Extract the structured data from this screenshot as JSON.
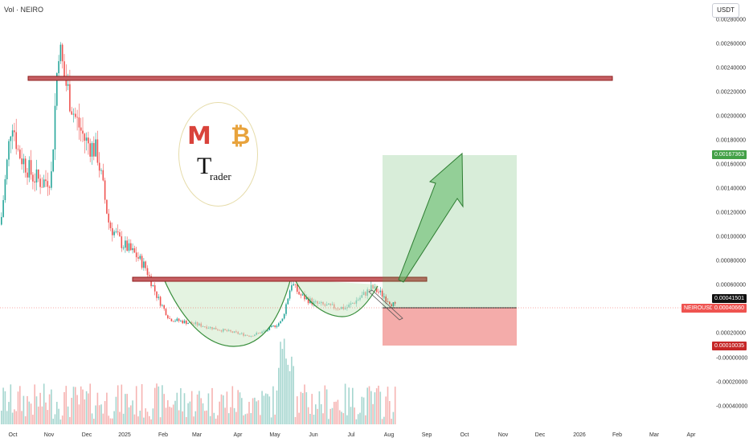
{
  "header": {
    "volume_label": "Vol · NEIRO",
    "currency_label": "USDT"
  },
  "price_axis": {
    "ticks": [
      "0.00280000",
      "0.00260000",
      "0.00240000",
      "0.00220000",
      "0.00200000",
      "0.00180000",
      "0.00160000",
      "0.00140000",
      "0.00120000",
      "0.00100000",
      "0.00080000",
      "0.00060000",
      "0.00020000",
      "-0.00000000",
      "-0.00020000",
      "-0.00040000"
    ],
    "tags": {
      "target": "0.00167363",
      "entry": "0.00041501",
      "symbol": "NEIROUSDT",
      "last_price": "0.00040660",
      "stop": "0.00010035"
    }
  },
  "time_axis": {
    "labels": [
      "Oct",
      "Nov",
      "Dec",
      "2025",
      "Feb",
      "Mar",
      "Apr",
      "May",
      "Jun",
      "Jul",
      "Aug",
      "Sep",
      "Oct",
      "Nov",
      "Dec",
      "2026",
      "Feb",
      "Mar",
      "Apr"
    ]
  },
  "logo": {
    "top_text": "MMB",
    "trader_text": "rader",
    "t_text": "T"
  },
  "colors": {
    "up": "#26a69a",
    "down": "#ef5350",
    "profit_zone": "#4caf50",
    "loss_zone": "#e53935",
    "resistance": "#b71c1c",
    "cup": "#388e3c"
  },
  "chart_data": {
    "type": "candlestick",
    "symbol": "NEIROUSDT",
    "y_unit": "USDT",
    "x_labels": [
      "Oct",
      "Nov",
      "Dec",
      "2025",
      "Feb",
      "Mar",
      "Apr",
      "May",
      "Jun",
      "Jul",
      "Aug",
      "Sep",
      "Oct",
      "Nov",
      "Dec",
      "2026",
      "Feb",
      "Mar",
      "Apr"
    ],
    "ylim": [
      -0.00045,
      0.00285
    ],
    "approx_close_path": [
      [
        "Oct",
        0.0011
      ],
      [
        "mid Oct",
        0.002
      ],
      [
        "late Oct",
        0.00175
      ],
      [
        "Nov",
        0.0026
      ],
      [
        "mid Nov",
        0.0021
      ],
      [
        "Dec",
        0.0018
      ],
      [
        "mid Dec",
        0.0015
      ],
      [
        "2025",
        0.001
      ],
      [
        "mid Jan",
        0.0008
      ],
      [
        "Feb",
        0.00035
      ],
      [
        "Mar",
        0.0003
      ],
      [
        "Apr",
        0.0002
      ],
      [
        "May",
        0.00045
      ],
      [
        "mid May",
        0.00062
      ],
      [
        "Jun",
        0.00048
      ],
      [
        "Jul",
        0.00046
      ],
      [
        "mid Jul",
        0.0006
      ],
      [
        "Aug",
        0.00041
      ]
    ],
    "levels": [
      {
        "name": "upper resistance",
        "price": 0.00232
      },
      {
        "name": "neckline resistance",
        "price": 0.00064
      }
    ],
    "position": {
      "target": 0.00167363,
      "entry": 0.00041501,
      "stop": 0.00010035,
      "last": 0.0004066
    },
    "pattern": "cup and handle",
    "grid": false
  }
}
